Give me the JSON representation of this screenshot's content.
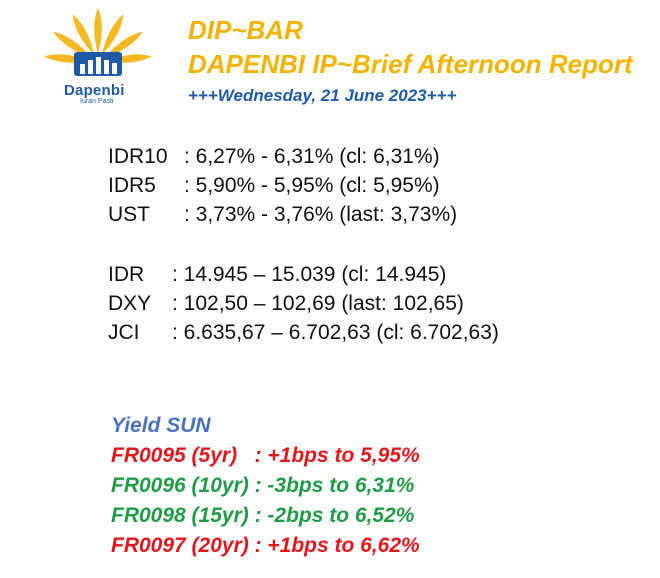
{
  "header": {
    "logo_name": "Dapenbi",
    "logo_tagline": "Iuran Pasti",
    "title": "DIP~BAR",
    "subtitle": "DAPENBI IP~Brief Afternoon Report",
    "date": "+++Wednesday, 21 June 2023+++"
  },
  "bonds": [
    {
      "label": "IDR10",
      "value": ": 6,27% - 6,31% (cl: 6,31%)"
    },
    {
      "label": "IDR5",
      "value": ": 5,90% - 5,95% (cl: 5,95%)"
    },
    {
      "label": "UST",
      "value": ": 3,73% - 3,76% (last: 3,73%)"
    }
  ],
  "markets": [
    {
      "label": "IDR",
      "value": ": 14.945 – 15.039 (cl: 14.945)"
    },
    {
      "label": "DXY",
      "value": ": 102,50 – 102,69 (last: 102,65)"
    },
    {
      "label": "JCI",
      "value": ": 6.635,67 – 6.702,63 (cl: 6.702,63)"
    }
  ],
  "yield_sun": {
    "heading": "Yield SUN",
    "rows": [
      {
        "text": "FR0095 (5yr)   : +1bps to 5,95%",
        "color": "#e3161c"
      },
      {
        "text": "FR0096 (10yr) : -3bps to 6,31%",
        "color": "#1f9c45"
      },
      {
        "text": "FR0098 (15yr) : -2bps to 6,52%",
        "color": "#1f9c45"
      },
      {
        "text": "FR0097 (20yr) : +1bps to 6,62%",
        "color": "#e3161c"
      }
    ]
  },
  "colors": {
    "title": "#f2b400",
    "date": "#1f5aa6",
    "heading": "#4a72c4"
  },
  "icons": {
    "logo": "sunburst-building-logo"
  }
}
